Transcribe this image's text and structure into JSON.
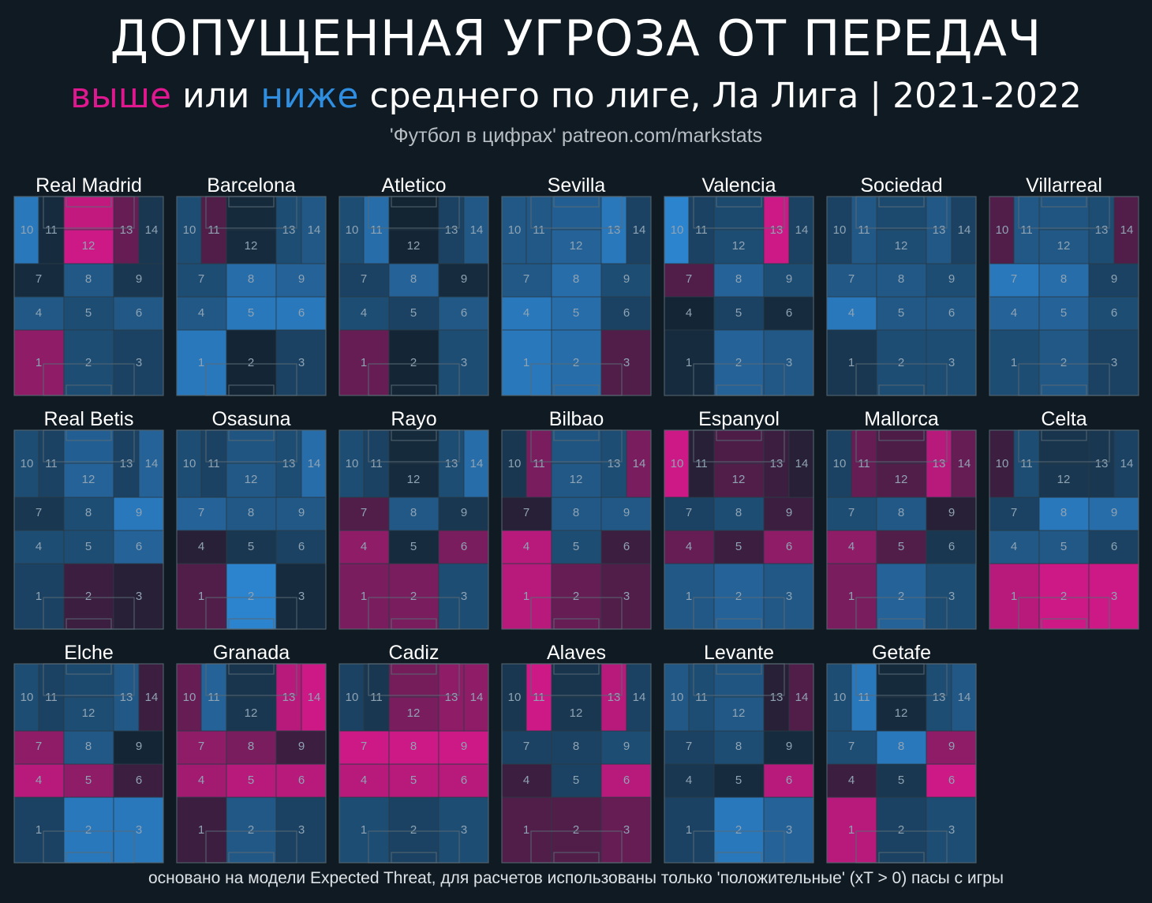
{
  "header": {
    "title": "ДОПУЩЕННАЯ УГРОЗА ОТ ПЕРЕДАЧ",
    "subtitle_above": "выше",
    "subtitle_or": " или ",
    "subtitle_below": "ниже",
    "subtitle_rest": " среднего по лиге, Ла Лига | 2021-2022",
    "credit": "'Футбол в цифрах' patreon.com/markstats"
  },
  "footnote": "основано на модели Expected Threat, для расчетов использованы только 'положительные' (xT > 0) пасы с игры",
  "colors": {
    "above": "#e0188f",
    "below": "#2f8ee0",
    "background": "#0f1a22",
    "neutral": "#13212c"
  },
  "chart_data": {
    "type": "heatmap",
    "title": "ДОПУЩЕННАЯ УГРОЗА ОТ ПЕРЕДАЧ",
    "zones": [
      "1",
      "2",
      "3",
      "4",
      "5",
      "6",
      "7",
      "8",
      "9",
      "10",
      "11",
      "12",
      "13",
      "14"
    ],
    "value_scale": "negative = below league average (blue), positive = above league average (pink)",
    "teams": [
      {
        "name": "Real Madrid",
        "values": {
          "1": 0.6,
          "2": -0.4,
          "3": -0.3,
          "4": -0.5,
          "5": -0.4,
          "6": -0.5,
          "7": -0.1,
          "8": -0.5,
          "9": -0.2,
          "10": -0.8,
          "11": -0.1,
          "12": 0.9,
          "13": 0.4,
          "14": -0.2
        }
      },
      {
        "name": "Barcelona",
        "values": {
          "1": -0.8,
          "2": -0.05,
          "3": -0.3,
          "4": -0.5,
          "5": -0.8,
          "6": -0.8,
          "7": -0.4,
          "8": -0.7,
          "9": -0.6,
          "10": -0.4,
          "11": 0.3,
          "12": -0.1,
          "13": -0.4,
          "14": -0.5
        }
      },
      {
        "name": "Atletico",
        "values": {
          "1": 0.4,
          "2": -0.05,
          "3": -0.4,
          "4": -0.4,
          "5": -0.3,
          "6": -0.5,
          "7": -0.3,
          "8": -0.6,
          "9": -0.1,
          "10": -0.4,
          "11": -0.7,
          "12": -0.05,
          "13": -0.3,
          "14": -0.5
        }
      },
      {
        "name": "Sevilla",
        "values": {
          "1": -0.8,
          "2": -0.7,
          "3": 0.3,
          "4": -0.8,
          "5": -0.7,
          "6": -0.3,
          "7": -0.5,
          "8": -0.7,
          "9": -0.4,
          "10": -0.5,
          "11": -0.5,
          "12": -0.6,
          "13": -0.8,
          "14": -0.3
        }
      },
      {
        "name": "Valencia",
        "values": {
          "1": -0.1,
          "2": -0.6,
          "3": -0.5,
          "4": -0.05,
          "5": -0.3,
          "6": -0.1,
          "7": 0.3,
          "8": -0.6,
          "9": -0.4,
          "10": -0.9,
          "11": -0.3,
          "12": -0.4,
          "13": 0.9,
          "14": -0.3
        }
      },
      {
        "name": "Sociedad",
        "values": {
          "1": -0.2,
          "2": -0.4,
          "3": -0.4,
          "4": -0.8,
          "5": -0.5,
          "6": -0.5,
          "7": -0.5,
          "8": -0.5,
          "9": -0.4,
          "10": -0.3,
          "11": -0.5,
          "12": -0.4,
          "13": -0.5,
          "14": -0.3
        }
      },
      {
        "name": "Villarreal",
        "values": {
          "1": -0.4,
          "2": -0.5,
          "3": -0.3,
          "4": -0.6,
          "5": -0.6,
          "6": -0.4,
          "7": -0.8,
          "8": -0.7,
          "9": -0.3,
          "10": 0.3,
          "11": -0.5,
          "12": -0.5,
          "13": -0.4,
          "14": 0.3
        }
      },
      {
        "name": "Real Betis",
        "values": {
          "1": -0.3,
          "2": 0.2,
          "3": 0.1,
          "4": -0.4,
          "5": -0.4,
          "6": -0.6,
          "7": -0.2,
          "8": -0.4,
          "9": -0.8,
          "10": -0.4,
          "11": -0.3,
          "12": -0.6,
          "13": -0.3,
          "14": -0.6
        }
      },
      {
        "name": "Osasuna",
        "values": {
          "1": 0.3,
          "2": -0.9,
          "3": -0.1,
          "4": 0.1,
          "5": -0.2,
          "6": -0.3,
          "7": -0.6,
          "8": -0.5,
          "9": -0.5,
          "10": -0.4,
          "11": -0.3,
          "12": -0.5,
          "13": -0.4,
          "14": -0.7
        }
      },
      {
        "name": "Rayo",
        "values": {
          "1": 0.5,
          "2": 0.5,
          "3": -0.4,
          "4": 0.6,
          "5": -0.1,
          "6": 0.5,
          "7": 0.3,
          "8": -0.5,
          "9": -0.2,
          "10": -0.4,
          "11": -0.3,
          "12": -0.1,
          "13": -0.4,
          "14": -0.7
        }
      },
      {
        "name": "Bilbao",
        "values": {
          "1": 0.8,
          "2": 0.4,
          "3": 0.3,
          "4": 0.8,
          "5": -0.4,
          "6": 0.2,
          "7": 0.1,
          "8": -0.5,
          "9": -0.5,
          "10": -0.2,
          "11": 0.5,
          "12": -0.5,
          "13": -0.4,
          "14": 0.5
        }
      },
      {
        "name": "Espanyol",
        "values": {
          "1": -0.5,
          "2": -0.6,
          "3": -0.5,
          "4": 0.4,
          "5": 0.2,
          "6": 0.6,
          "7": -0.3,
          "8": -0.4,
          "9": 0.2,
          "10": 0.9,
          "11": 0.1,
          "12": 0.3,
          "13": 0.2,
          "14": 0.1
        }
      },
      {
        "name": "Mallorca",
        "values": {
          "1": 0.5,
          "2": -0.6,
          "3": -0.4,
          "4": 0.6,
          "5": 0.3,
          "6": -0.2,
          "7": -0.4,
          "8": -0.5,
          "9": 0.1,
          "10": -0.3,
          "11": 0.4,
          "12": 0.3,
          "13": 0.8,
          "14": 0.4
        }
      },
      {
        "name": "Celta",
        "values": {
          "1": 0.8,
          "2": 0.9,
          "3": 0.9,
          "4": -0.5,
          "5": -0.5,
          "6": -0.3,
          "7": -0.3,
          "8": -0.8,
          "9": -0.7,
          "10": 0.2,
          "11": -0.4,
          "12": -0.2,
          "13": -0.2,
          "14": -0.3
        }
      },
      {
        "name": "Elche",
        "values": {
          "1": -0.3,
          "2": -0.8,
          "3": -0.8,
          "4": 0.8,
          "5": 0.6,
          "6": 0.2,
          "7": 0.6,
          "8": -0.5,
          "9": -0.05,
          "10": -0.4,
          "11": -0.3,
          "12": -0.4,
          "13": -0.5,
          "14": 0.2
        }
      },
      {
        "name": "Granada",
        "values": {
          "1": 0.2,
          "2": -0.5,
          "3": -0.3,
          "4": 0.7,
          "5": 0.8,
          "6": 0.8,
          "7": 0.6,
          "8": 0.5,
          "9": 0.2,
          "10": 0.4,
          "11": -0.6,
          "12": -0.2,
          "13": 0.8,
          "14": 0.9
        }
      },
      {
        "name": "Cadiz",
        "values": {
          "1": -0.4,
          "2": -0.3,
          "3": -0.4,
          "4": 0.8,
          "5": 0.8,
          "6": 0.8,
          "7": 0.9,
          "8": 0.9,
          "9": 0.9,
          "10": -0.3,
          "11": -0.2,
          "12": 0.5,
          "13": 0.6,
          "14": 0.6
        }
      },
      {
        "name": "Alaves",
        "values": {
          "1": 0.3,
          "2": 0.3,
          "3": 0.4,
          "4": 0.2,
          "5": -0.3,
          "6": 0.8,
          "7": -0.3,
          "8": -0.3,
          "9": -0.4,
          "10": -0.2,
          "11": 0.9,
          "12": -0.2,
          "13": 0.8,
          "14": -0.3
        }
      },
      {
        "name": "Levante",
        "values": {
          "1": -0.3,
          "2": -0.8,
          "3": -0.6,
          "4": -0.2,
          "5": -0.1,
          "6": 0.8,
          "7": -0.3,
          "8": -0.4,
          "9": -0.1,
          "10": -0.5,
          "11": -0.4,
          "12": -0.5,
          "13": 0.1,
          "14": 0.3
        }
      },
      {
        "name": "Getafe",
        "values": {
          "1": 0.8,
          "2": -0.3,
          "3": -0.4,
          "4": 0.2,
          "5": -0.2,
          "6": 0.9,
          "7": -0.4,
          "8": -0.8,
          "9": 0.6,
          "10": -0.4,
          "11": -0.8,
          "12": -0.1,
          "13": -0.4,
          "14": -0.5
        }
      }
    ]
  }
}
